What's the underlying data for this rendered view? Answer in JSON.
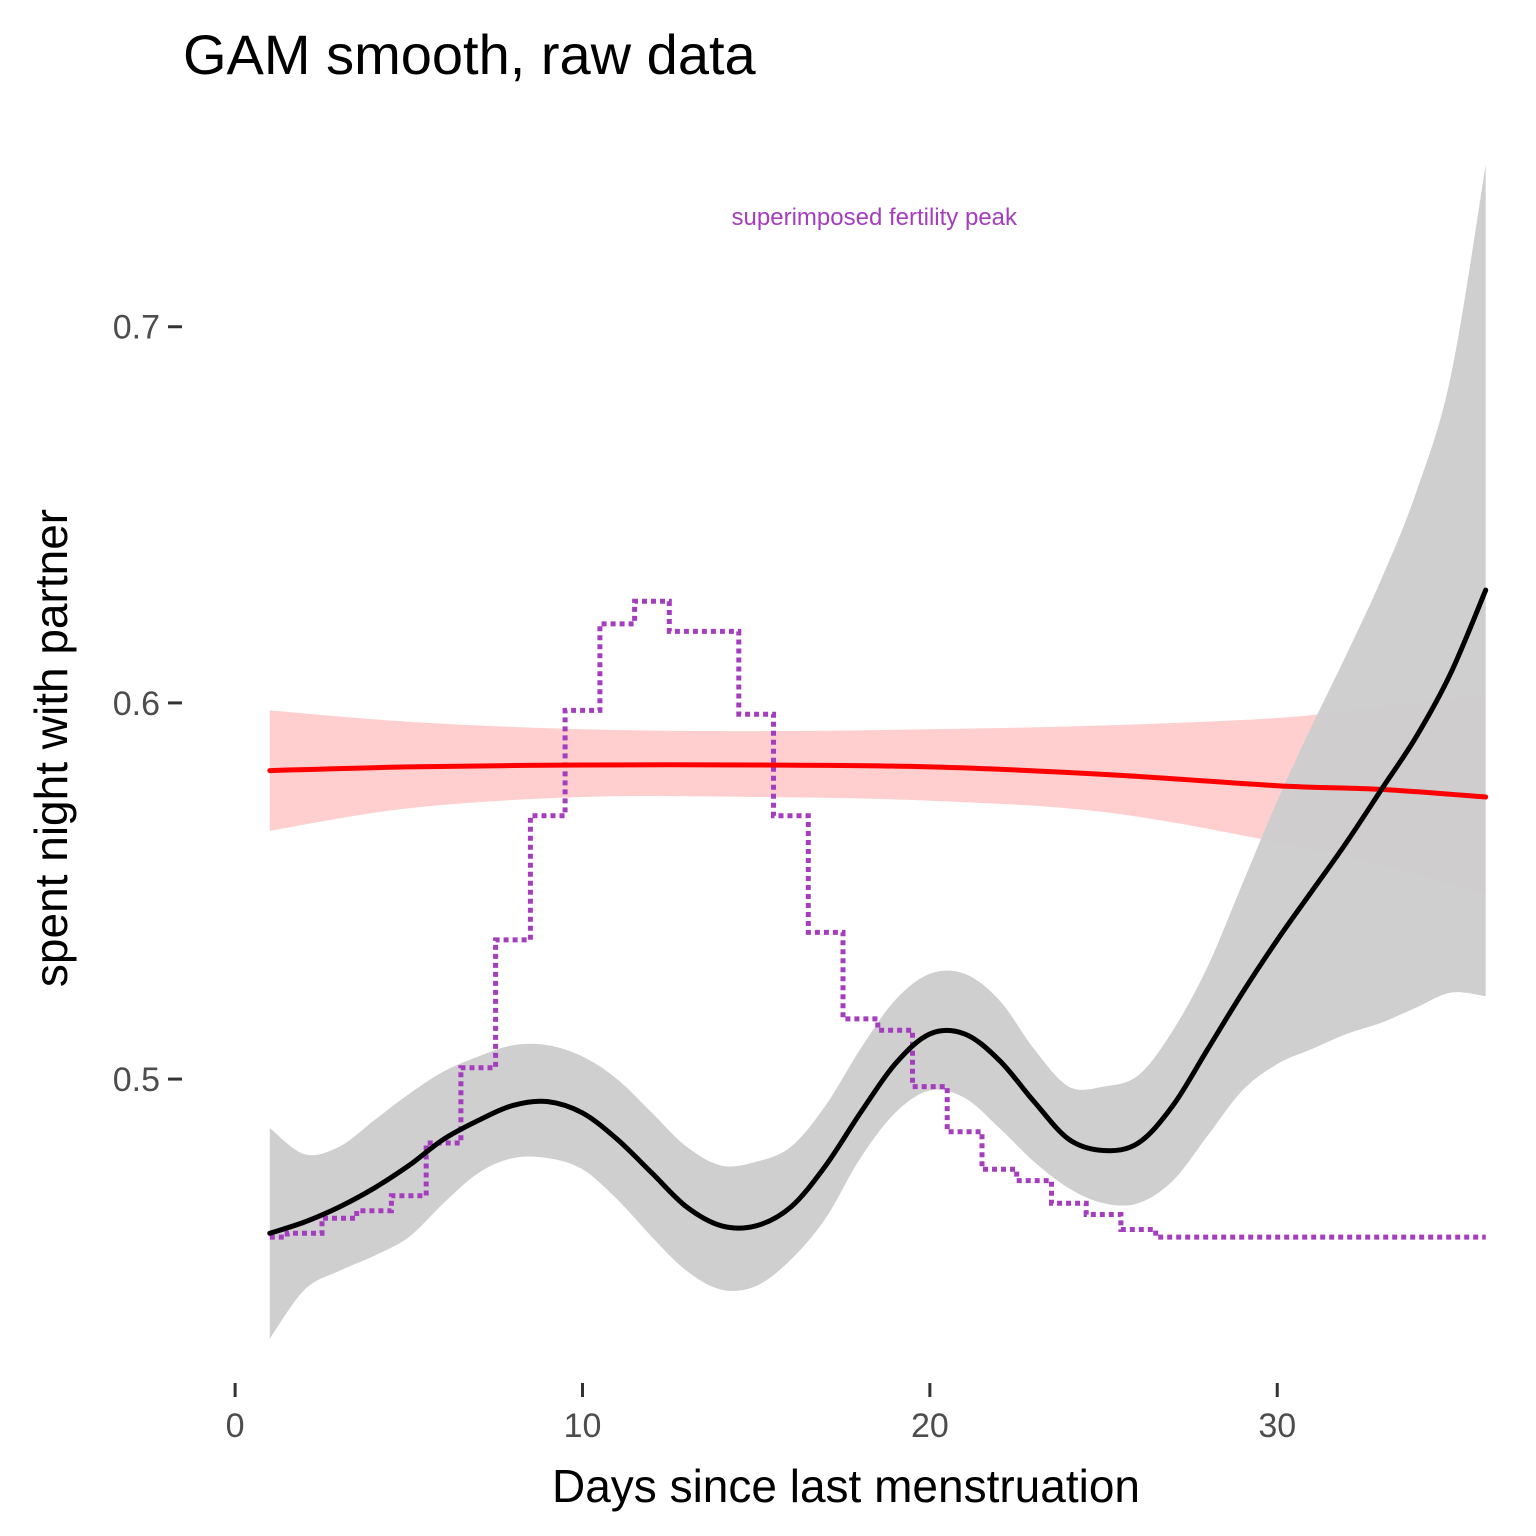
{
  "chart_data": {
    "type": "line",
    "title": "GAM smooth, raw data",
    "xlabel": "Days since last menstruation",
    "ylabel": "spent night with partner",
    "xlim": [
      -1.5,
      36.7
    ],
    "ylim": [
      0.42,
      0.743
    ],
    "x_ticks": [
      0,
      10,
      20,
      30
    ],
    "x_tick_labels": [
      "0",
      "10",
      "20",
      "30"
    ],
    "y_ticks": [
      0.5,
      0.6,
      0.7
    ],
    "y_tick_labels": [
      "0.5",
      "0.6",
      "0.7"
    ],
    "grid": false,
    "annotation": {
      "text": "superimposed fertility peak",
      "x": 18.4,
      "y": 0.727,
      "color": "#a53dbf"
    },
    "series": [
      {
        "style": "smooth-with-band",
        "color": "#ff0000",
        "band_color": "#ffcccc",
        "x": [
          1,
          5,
          10,
          15,
          20,
          25,
          30,
          33,
          36
        ],
        "y": [
          0.582,
          0.583,
          0.5835,
          0.5835,
          0.583,
          0.581,
          0.578,
          0.577,
          0.575
        ],
        "lower": [
          0.566,
          0.572,
          0.575,
          0.575,
          0.574,
          0.571,
          0.563,
          0.557,
          0.549
        ],
        "upper": [
          0.598,
          0.595,
          0.593,
          0.5925,
          0.593,
          0.594,
          0.596,
          0.599,
          0.602
        ]
      },
      {
        "style": "smooth-with-band",
        "color": "#000000",
        "band_color": "#cccccc",
        "x": [
          1,
          2,
          3,
          4,
          5,
          6,
          7,
          8,
          9,
          10,
          11,
          12,
          13,
          14,
          15,
          16,
          17,
          18,
          19,
          20,
          21,
          22,
          23,
          24,
          25,
          26,
          27,
          28,
          29,
          30,
          31,
          32,
          33,
          34,
          35,
          36
        ],
        "y": [
          0.459,
          0.462,
          0.466,
          0.471,
          0.477,
          0.484,
          0.489,
          0.493,
          0.494,
          0.491,
          0.484,
          0.475,
          0.466,
          0.461,
          0.461,
          0.466,
          0.477,
          0.491,
          0.504,
          0.512,
          0.512,
          0.505,
          0.494,
          0.484,
          0.481,
          0.483,
          0.493,
          0.508,
          0.523,
          0.537,
          0.55,
          0.563,
          0.577,
          0.591,
          0.608,
          0.63
        ],
        "lower": [
          0.431,
          0.444,
          0.449,
          0.453,
          0.458,
          0.467,
          0.475,
          0.479,
          0.479,
          0.476,
          0.468,
          0.458,
          0.449,
          0.444,
          0.445,
          0.452,
          0.463,
          0.479,
          0.491,
          0.497,
          0.495,
          0.487,
          0.478,
          0.471,
          0.467,
          0.467,
          0.473,
          0.485,
          0.497,
          0.504,
          0.508,
          0.512,
          0.515,
          0.519,
          0.523,
          0.522
        ],
        "upper": [
          0.487,
          0.48,
          0.482,
          0.489,
          0.496,
          0.502,
          0.506,
          0.509,
          0.509,
          0.506,
          0.5,
          0.491,
          0.482,
          0.477,
          0.478,
          0.482,
          0.493,
          0.508,
          0.521,
          0.528,
          0.528,
          0.521,
          0.508,
          0.498,
          0.498,
          0.501,
          0.513,
          0.53,
          0.552,
          0.574,
          0.594,
          0.613,
          0.633,
          0.656,
          0.687,
          0.743
        ]
      },
      {
        "style": "dotted-step",
        "color": "#a53dbf",
        "x": [
          1,
          2,
          3,
          4,
          5,
          6,
          7,
          8,
          9,
          10,
          11,
          12,
          13,
          14,
          15,
          16,
          17,
          18,
          19,
          20,
          21,
          22,
          23,
          24,
          25,
          26,
          27,
          28,
          29,
          30,
          31,
          32,
          33,
          34,
          35,
          36
        ],
        "y": [
          0.458,
          0.459,
          0.463,
          0.465,
          0.469,
          0.483,
          0.503,
          0.537,
          0.57,
          0.598,
          0.621,
          0.627,
          0.619,
          0.619,
          0.597,
          0.57,
          0.539,
          0.516,
          0.513,
          0.498,
          0.486,
          0.476,
          0.473,
          0.467,
          0.464,
          0.46,
          0.458,
          0.458,
          0.458,
          0.458,
          0.458,
          0.458,
          0.458,
          0.458,
          0.458,
          0.458
        ]
      }
    ]
  }
}
